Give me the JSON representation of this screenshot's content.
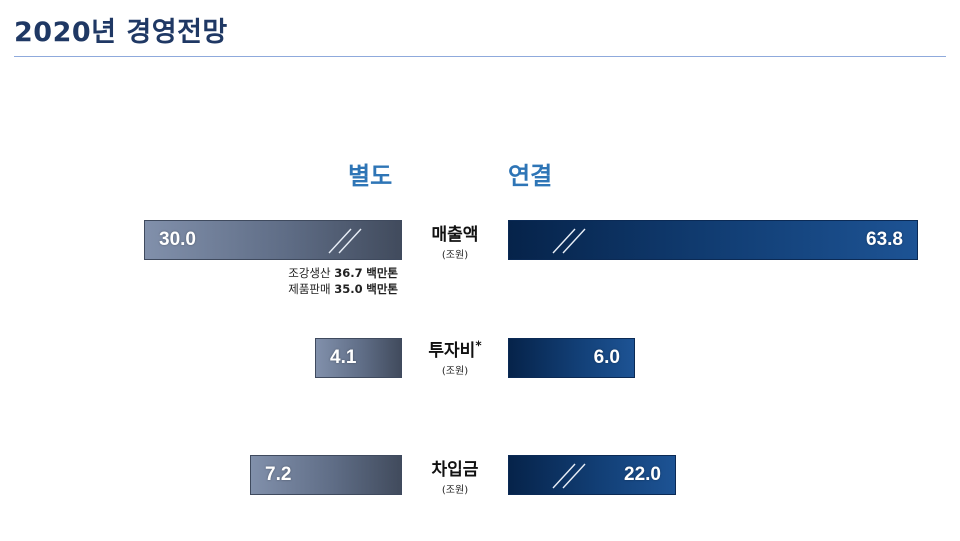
{
  "page": {
    "title": "2020년 경영전망"
  },
  "headers": {
    "left": "별도",
    "right": "연결"
  },
  "chart_data": {
    "type": "bar",
    "title": "2020년 경영전망",
    "series": [
      {
        "name": "별도",
        "values": [
          30.0,
          4.1,
          7.2
        ]
      },
      {
        "name": "연결",
        "values": [
          63.8,
          6.0,
          22.0
        ]
      }
    ],
    "categories": [
      "매출액",
      "투자비",
      "차입금"
    ],
    "units": [
      "(조원)",
      "(조원)",
      "(조원)"
    ],
    "value_labels": {
      "left": [
        "30.0",
        "4.1",
        "7.2"
      ],
      "right": [
        "63.8",
        "6.0",
        "22.0"
      ]
    },
    "axis_breaks": {
      "left": [
        true,
        false,
        false
      ],
      "right": [
        true,
        false,
        true
      ]
    },
    "footnote_marker": "*",
    "colors": {
      "left_bar": "#5f6d86",
      "right_bar": "#123f76",
      "header": "#2e75b6",
      "title": "#1f3864"
    }
  },
  "notes": {
    "line1_label": "조강생산",
    "line1_value": "36.7",
    "line1_unit": "백만톤",
    "line2_label": "제품판매",
    "line2_value": "35.0",
    "line2_unit": "백만톤"
  }
}
